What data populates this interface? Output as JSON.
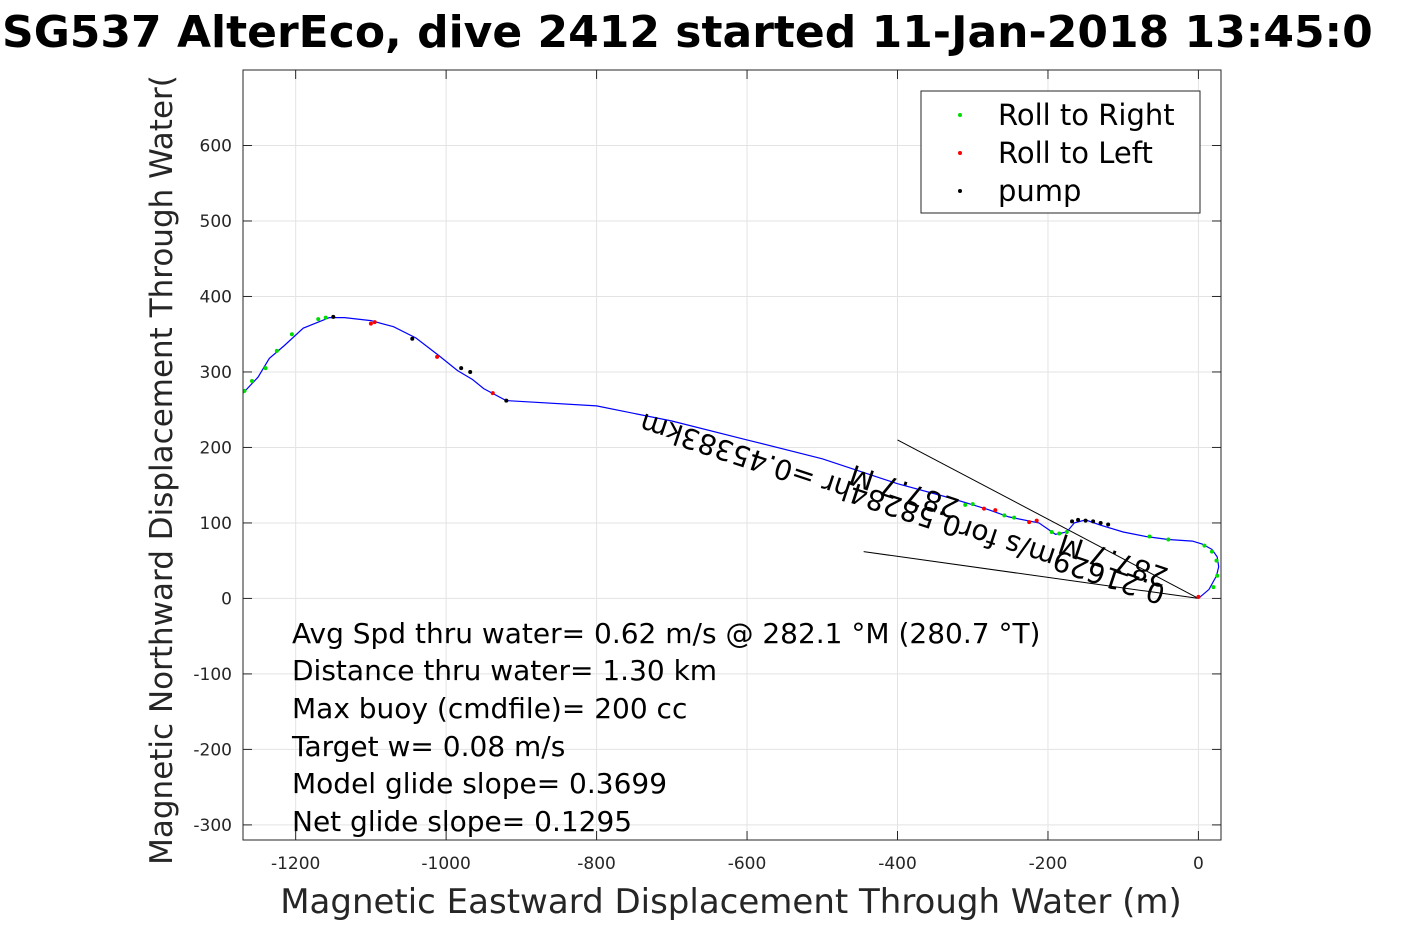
{
  "chart_data": {
    "type": "scatter",
    "title": "SG537 AlterEco, dive 2412 started 11-Jan-2018 13:45:0",
    "xlabel": "Magnetic Eastward Displacement Through Water (m)",
    "ylabel": "Magnetic Northward Displacement Through Water(",
    "xlim": [
      -1270,
      30
    ],
    "ylim": [
      -320,
      700
    ],
    "xticks": [
      -1200,
      -1000,
      -800,
      -600,
      -400,
      -200,
      0
    ],
    "yticks": [
      -300,
      -200,
      -100,
      0,
      100,
      200,
      300,
      400,
      500,
      600
    ],
    "grid": true,
    "legend_position": "top-right",
    "colors": {
      "track": "#0000ff",
      "roll_right": "#00dd00",
      "roll_left": "#ff0000",
      "pump": "#000080"
    },
    "track": [
      [
        0,
        0
      ],
      [
        14,
        12
      ],
      [
        24,
        30
      ],
      [
        27,
        42
      ],
      [
        25,
        55
      ],
      [
        18,
        65
      ],
      [
        5,
        72
      ],
      [
        -8,
        76
      ],
      [
        -40,
        78
      ],
      [
        -70,
        82
      ],
      [
        -100,
        88
      ],
      [
        -130,
        97
      ],
      [
        -150,
        104
      ],
      [
        -165,
        100
      ],
      [
        -175,
        88
      ],
      [
        -190,
        85
      ],
      [
        -212,
        100
      ],
      [
        -252,
        108
      ],
      [
        -280,
        118
      ],
      [
        -300,
        124
      ],
      [
        -330,
        133
      ],
      [
        -400,
        152
      ],
      [
        -500,
        185
      ],
      [
        -600,
        210
      ],
      [
        -700,
        235
      ],
      [
        -800,
        255
      ],
      [
        -920,
        262
      ],
      [
        -950,
        278
      ],
      [
        -965,
        290
      ],
      [
        -985,
        302
      ],
      [
        -1010,
        322
      ],
      [
        -1040,
        345
      ],
      [
        -1070,
        360
      ],
      [
        -1100,
        368
      ],
      [
        -1135,
        372
      ],
      [
        -1155,
        372
      ],
      [
        -1190,
        358
      ],
      [
        -1215,
        335
      ],
      [
        -1235,
        318
      ],
      [
        -1250,
        293
      ],
      [
        -1270,
        272
      ]
    ],
    "series": [
      {
        "name": "Roll to Right",
        "color": "#00dd00",
        "x": [
          20,
          25,
          24,
          18,
          8,
          -40,
          -65,
          -175,
          -185,
          -195,
          -245,
          -258,
          -300,
          -310,
          -1160,
          -1170,
          -1205,
          -1225,
          -1240,
          -1258,
          -1268
        ],
        "y": [
          15,
          30,
          50,
          62,
          70,
          78,
          82,
          88,
          86,
          88,
          107,
          110,
          125,
          124,
          372,
          370,
          350,
          328,
          305,
          288,
          275
        ]
      },
      {
        "name": "Roll to Left",
        "color": "#ff0000",
        "x": [
          0,
          -215,
          -225,
          -270,
          -285,
          -1095,
          -1100,
          -1012,
          -938
        ],
        "y": [
          2,
          103,
          101,
          117,
          119,
          366,
          364,
          320,
          272
        ]
      },
      {
        "name": "pump",
        "color": "#000000",
        "x": [
          -120,
          -130,
          -140,
          -150,
          -160,
          -168,
          -1150,
          -1045,
          -980,
          -968,
          -920
        ],
        "y": [
          98,
          100,
          102,
          103,
          104,
          102,
          373,
          344,
          305,
          300,
          262
        ]
      }
    ],
    "reference_lines": [
      {
        "from": [
          0,
          0
        ],
        "to": [
          -400,
          210
        ]
      },
      {
        "from": [
          0,
          0
        ],
        "to": [
          -445,
          62
        ]
      }
    ],
    "annotations": [
      "0.21629m/s for0.58284hr =0.45383km",
      "287.7 M",
      "287.7 M"
    ],
    "notes": [
      "Avg Spd thru water=  0.62 m/s @ 282.1 °M (280.7 °T)",
      "Distance thru water=  1.30 km",
      "Max buoy (cmdfile)= 200 cc",
      "Target w= 0.08 m/s",
      "Model glide slope= 0.3699",
      "Net glide slope= 0.1295"
    ]
  }
}
